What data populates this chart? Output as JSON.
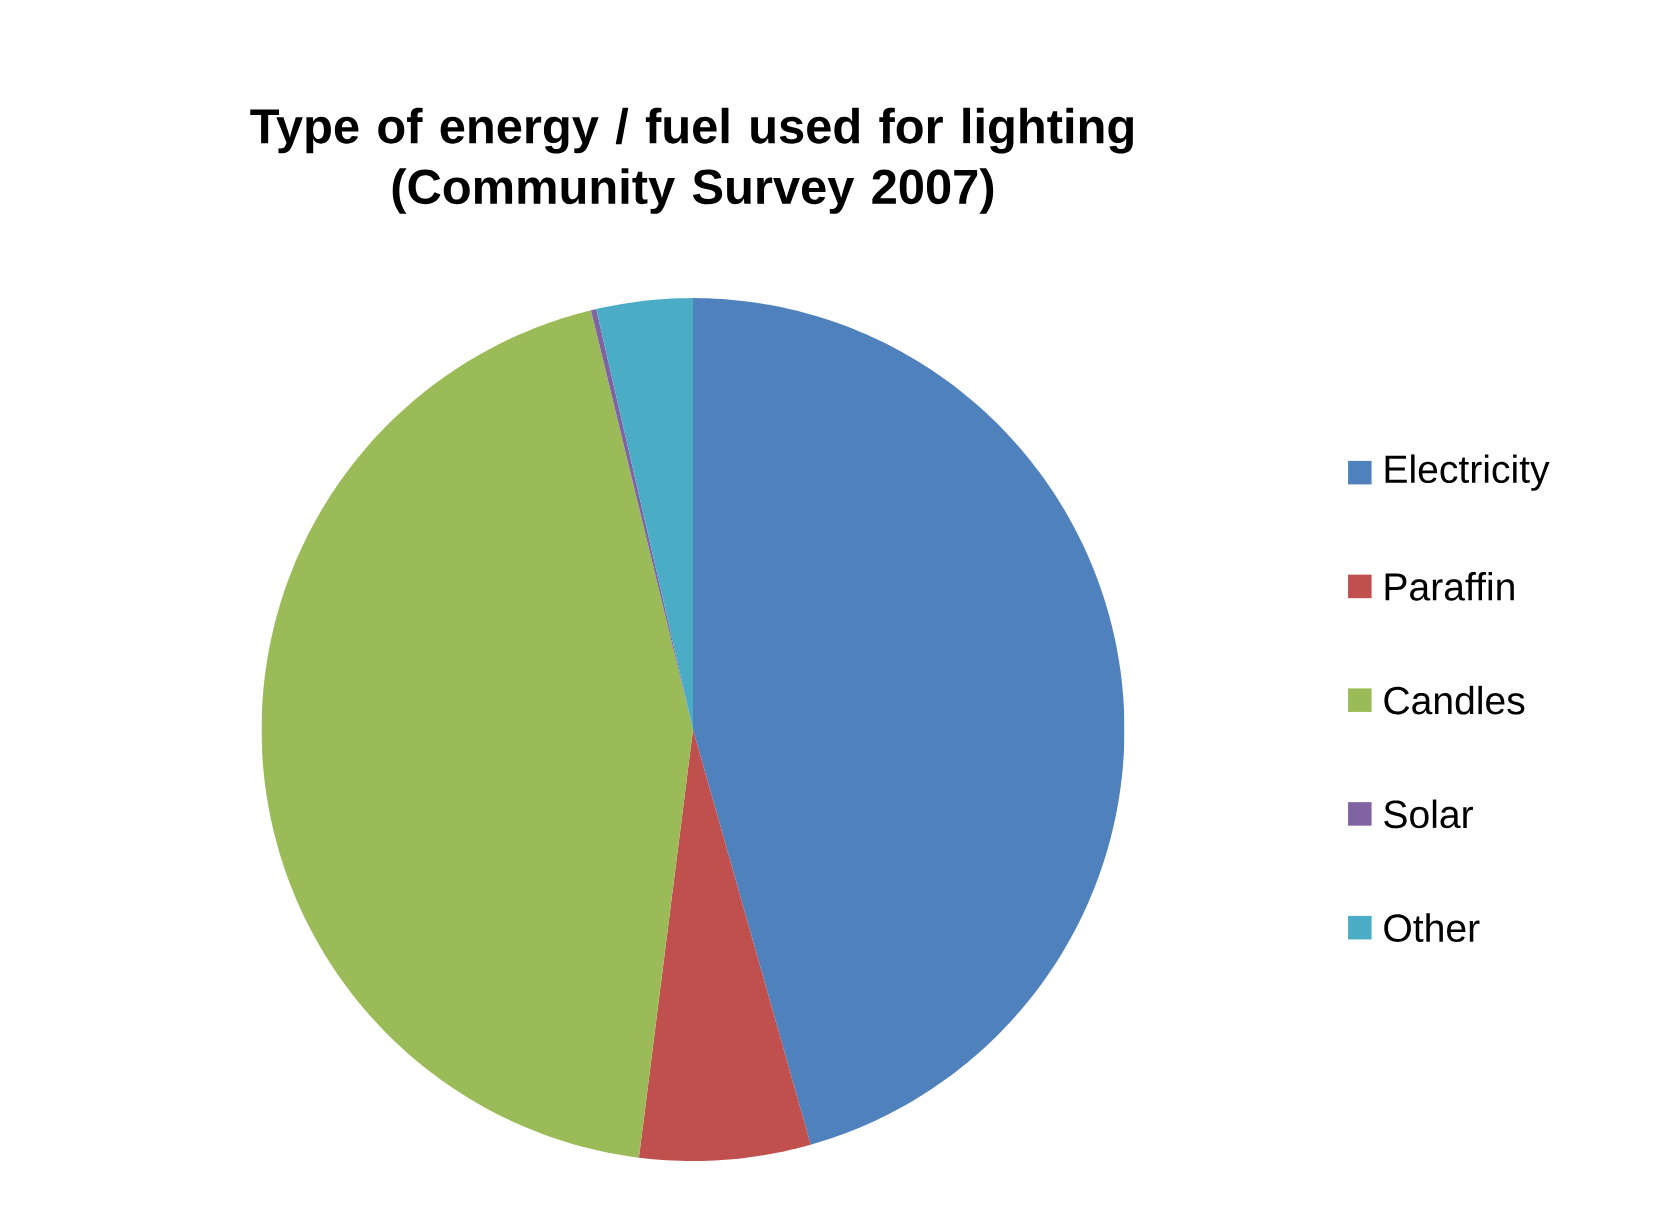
{
  "chart_data": {
    "type": "pie",
    "title": "Type of energy / fuel used for lighting\n(Community Survey 2007)",
    "categories": [
      "Electricity",
      "Paraffin",
      "Candles",
      "Solar",
      "Other"
    ],
    "values": [
      45.6,
      6.4,
      44.2,
      0.2,
      3.6
    ],
    "colors": [
      "#4f81bd",
      "#c0504d",
      "#9bbb59",
      "#8064a2",
      "#4bacc6"
    ],
    "legend": "right"
  }
}
